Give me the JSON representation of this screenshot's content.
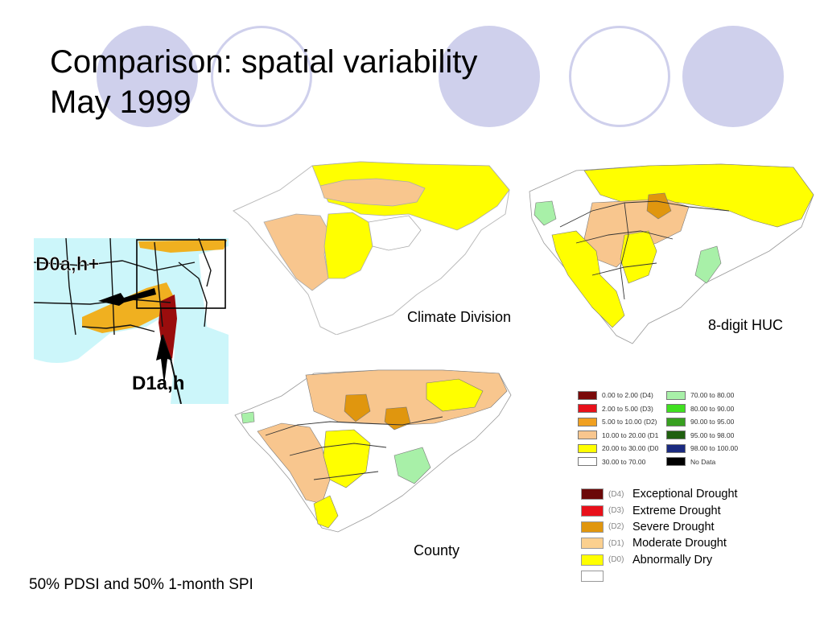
{
  "slide": {
    "title_line1": "Comparison: spatial variability",
    "title_line2": "May 1999",
    "footer_note": "50% PDSI and 50% 1-month SPI"
  },
  "maps": {
    "regional": {
      "label_d0": "D0a,h+",
      "label_d1": "D1a,h"
    },
    "climate_division": {
      "caption": "Climate Division"
    },
    "huc": {
      "caption": "8-digit HUC"
    },
    "county": {
      "caption": "County"
    }
  },
  "percentile_legend": {
    "items": [
      {
        "range": "0.00 to 2.00 (D4)",
        "color": "#7a0a0a"
      },
      {
        "range": "2.00 to 5.00 (D3)",
        "color": "#e8101a"
      },
      {
        "range": "5.00 to 10.00 (D2)",
        "color": "#f0a020"
      },
      {
        "range": "10.00 to 20.00 (D1",
        "color": "#f8c68e"
      },
      {
        "range": "20.00 to 30.00 (D0",
        "color": "#ffff00"
      },
      {
        "range": "30.00 to 70.00",
        "color": "#ffffff"
      },
      {
        "range": "70.00 to 80.00",
        "color": "#a8f0a8"
      },
      {
        "range": "80.00 to 90.00",
        "color": "#40e020"
      },
      {
        "range": "90.00 to 95.00",
        "color": "#38a020"
      },
      {
        "range": "95.00 to 98.00",
        "color": "#206010"
      },
      {
        "range": "98.00 to 100.00",
        "color": "#1a2a80"
      },
      {
        "range": "No Data",
        "color": "#000000"
      }
    ]
  },
  "drought_legend": {
    "items": [
      {
        "code": "(D4)",
        "name": "Exceptional Drought",
        "color": "#6b0808"
      },
      {
        "code": "(D3)",
        "name": "Extreme Drought",
        "color": "#e8101a"
      },
      {
        "code": "(D2)",
        "name": "Severe Drought",
        "color": "#e0960e"
      },
      {
        "code": "(D1)",
        "name": "Moderate Drought",
        "color": "#fbd08f"
      },
      {
        "code": "(D0)",
        "name": "Abnormally Dry",
        "color": "#ffff00"
      },
      {
        "code": "",
        "name": "",
        "color": "#ffffff"
      }
    ]
  }
}
